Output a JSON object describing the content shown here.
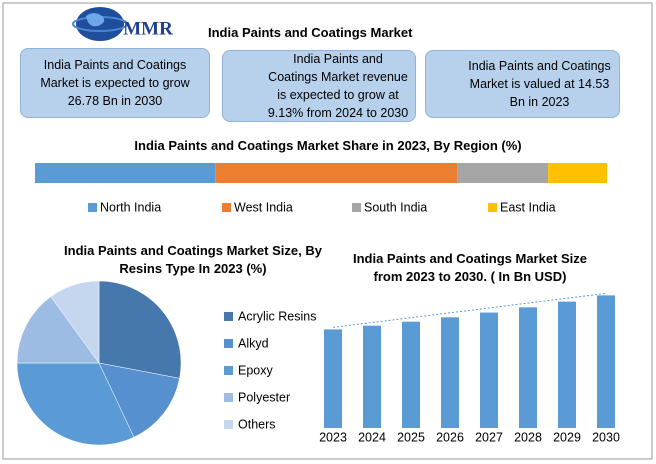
{
  "header": {
    "logo": "MMR",
    "title": "India Paints and Coatings Market"
  },
  "info_boxes": [
    {
      "text": "India Paints and Coatings Market is expected to grow 26.78 Bn in 2030"
    },
    {
      "text": "India Paints and Coatings Market revenue is expected to grow at 9.13% from 2024 to 2030"
    },
    {
      "text": "India Paints and Coatings Market is valued at 14.53 Bn in 2023"
    }
  ],
  "chart_data": [
    {
      "type": "stacked_bar",
      "title": "India Paints and Coatings Market Share in 2023, By Region (%)",
      "series": [
        {
          "name": "North India",
          "color": "#5b9bd5",
          "values": [
            31.5
          ]
        },
        {
          "name": "West India",
          "color": "#ed7d31",
          "values": [
            42.3
          ]
        },
        {
          "name": "South  India",
          "color": "#a5a5a5",
          "values": [
            15.9
          ]
        },
        {
          "name": "East India",
          "color": "#ffc000",
          "values": [
            10.3
          ]
        }
      ],
      "xlim": [
        0,
        100
      ]
    },
    {
      "type": "pie",
      "title": "India Paints and Coatings Market Size, By Resins Type In 2023 (%)",
      "categories": [
        "Acrylic Resins",
        "Alkyd",
        "Epoxy",
        "Polyester",
        "Others"
      ],
      "values": [
        28,
        15,
        32,
        15,
        10
      ],
      "colors": [
        "#4677ad",
        "#5690cf",
        "#5b9bd5",
        "#9dbce3",
        "#c5d7ef"
      ]
    },
    {
      "type": "bar",
      "title": "India Paints and Coatings Market Size from 2023 to 2030. ( In Bn  USD)",
      "categories": [
        "2023",
        "2024",
        "2025",
        "2026",
        "2027",
        "2028",
        "2029",
        "2030"
      ],
      "values": [
        14.53,
        15.86,
        17.3,
        18.88,
        20.6,
        22.48,
        24.53,
        26.78
      ],
      "color": "#5b9bd5",
      "ylim": [
        -21,
        28
      ],
      "trendline": true
    }
  ]
}
